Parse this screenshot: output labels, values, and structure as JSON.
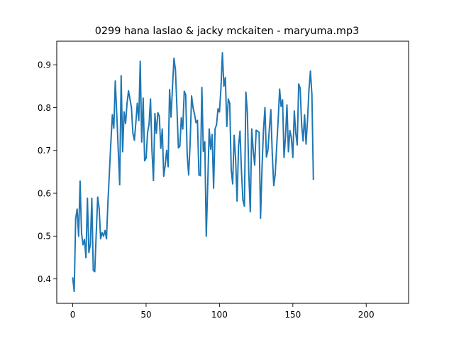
{
  "chart_data": {
    "type": "line",
    "title": "0299 hana laslao & jacky mckaiten - maryuma.mp3",
    "xlabel": "",
    "ylabel": "",
    "xlim": [
      -10.9,
      228.9
    ],
    "ylim": [
      0.343,
      0.955
    ],
    "xticks": [
      0,
      50,
      100,
      150,
      200
    ],
    "yticks": [
      0.4,
      0.5,
      0.6,
      0.7,
      0.8,
      0.9
    ],
    "grid": false,
    "series": [
      {
        "color": "#1f77b4",
        "values": [
          0.402,
          0.371,
          0.541,
          0.563,
          0.5,
          0.628,
          0.506,
          0.48,
          0.492,
          0.45,
          0.588,
          0.462,
          0.48,
          0.588,
          0.42,
          0.417,
          0.505,
          0.591,
          0.565,
          0.494,
          0.508,
          0.5,
          0.513,
          0.494,
          0.58,
          0.65,
          0.72,
          0.783,
          0.752,
          0.862,
          0.785,
          0.702,
          0.62,
          0.874,
          0.697,
          0.79,
          0.763,
          0.81,
          0.839,
          0.82,
          0.8,
          0.74,
          0.724,
          0.765,
          0.81,
          0.77,
          0.908,
          0.72,
          0.822,
          0.676,
          0.682,
          0.742,
          0.761,
          0.82,
          0.7,
          0.63,
          0.786,
          0.74,
          0.788,
          0.78,
          0.705,
          0.75,
          0.64,
          0.665,
          0.7,
          0.662,
          0.842,
          0.778,
          0.85,
          0.915,
          0.888,
          0.8,
          0.706,
          0.71,
          0.776,
          0.75,
          0.838,
          0.83,
          0.69,
          0.643,
          0.717,
          0.827,
          0.8,
          0.785,
          0.765,
          0.77,
          0.643,
          0.641,
          0.847,
          0.698,
          0.72,
          0.5,
          0.62,
          0.75,
          0.703,
          0.737,
          0.612,
          0.75,
          0.76,
          0.797,
          0.79,
          0.845,
          0.928,
          0.85,
          0.87,
          0.756,
          0.82,
          0.81,
          0.655,
          0.622,
          0.735,
          0.68,
          0.582,
          0.71,
          0.745,
          0.65,
          0.583,
          0.57,
          0.836,
          0.79,
          0.645,
          0.557,
          0.75,
          0.7,
          0.666,
          0.747,
          0.745,
          0.742,
          0.542,
          0.66,
          0.748,
          0.8,
          0.685,
          0.7,
          0.75,
          0.795,
          0.69,
          0.618,
          0.645,
          0.71,
          0.77,
          0.843,
          0.803,
          0.818,
          0.684,
          0.732,
          0.806,
          0.697,
          0.746,
          0.73,
          0.684,
          0.792,
          0.74,
          0.713,
          0.855,
          0.845,
          0.76,
          0.722,
          0.783,
          0.715,
          0.771,
          0.842,
          0.885,
          0.83,
          0.633
        ]
      }
    ]
  }
}
